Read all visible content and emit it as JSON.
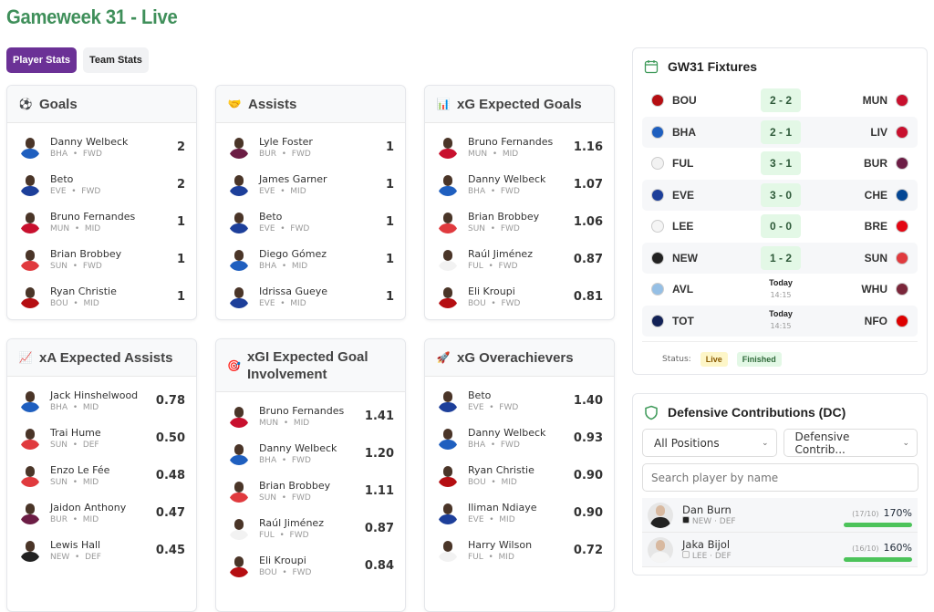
{
  "page": {
    "title": "Gameweek 31 - Live"
  },
  "tabs": [
    {
      "label": "Player Stats",
      "active": true
    },
    {
      "label": "Team Stats",
      "active": false
    }
  ],
  "cards": [
    {
      "title": "Goals",
      "icon": "soccer-ball-icon",
      "glyph": "⚽",
      "players": [
        {
          "name": "Danny Welbeck",
          "team": "BHA",
          "pos": "FWD",
          "value": "2"
        },
        {
          "name": "Beto",
          "team": "EVE",
          "pos": "FWD",
          "value": "2"
        },
        {
          "name": "Bruno Fernandes",
          "team": "MUN",
          "pos": "MID",
          "value": "1"
        },
        {
          "name": "Brian Brobbey",
          "team": "SUN",
          "pos": "FWD",
          "value": "1"
        },
        {
          "name": "Ryan Christie",
          "team": "BOU",
          "pos": "MID",
          "value": "1"
        }
      ]
    },
    {
      "title": "Assists",
      "icon": "handshake-icon",
      "glyph": "🤝",
      "players": [
        {
          "name": "Lyle Foster",
          "team": "BUR",
          "pos": "FWD",
          "value": "1"
        },
        {
          "name": "James Garner",
          "team": "EVE",
          "pos": "MID",
          "value": "1"
        },
        {
          "name": "Beto",
          "team": "EVE",
          "pos": "FWD",
          "value": "1"
        },
        {
          "name": "Diego Gómez",
          "team": "BHA",
          "pos": "MID",
          "value": "1"
        },
        {
          "name": "Idrissa Gueye",
          "team": "EVE",
          "pos": "MID",
          "value": "1"
        }
      ]
    },
    {
      "title": "xG Expected Goals",
      "icon": "bar-chart-icon",
      "glyph": "📊",
      "players": [
        {
          "name": "Bruno Fernandes",
          "team": "MUN",
          "pos": "MID",
          "value": "1.16"
        },
        {
          "name": "Danny Welbeck",
          "team": "BHA",
          "pos": "FWD",
          "value": "1.07"
        },
        {
          "name": "Brian Brobbey",
          "team": "SUN",
          "pos": "FWD",
          "value": "1.06"
        },
        {
          "name": "Raúl Jiménez",
          "team": "FUL",
          "pos": "FWD",
          "value": "0.87"
        },
        {
          "name": "Eli Kroupi",
          "team": "BOU",
          "pos": "FWD",
          "value": "0.81"
        }
      ]
    },
    {
      "title": "xA Expected Assists",
      "icon": "trend-chart-icon",
      "glyph": "📈",
      "players": [
        {
          "name": "Jack Hinshelwood",
          "team": "BHA",
          "pos": "MID",
          "value": "0.78"
        },
        {
          "name": "Trai Hume",
          "team": "SUN",
          "pos": "DEF",
          "value": "0.50"
        },
        {
          "name": "Enzo Le Fée",
          "team": "SUN",
          "pos": "MID",
          "value": "0.48"
        },
        {
          "name": "Jaidon Anthony",
          "team": "BUR",
          "pos": "MID",
          "value": "0.47"
        },
        {
          "name": "Lewis Hall",
          "team": "NEW",
          "pos": "DEF",
          "value": "0.45"
        }
      ]
    },
    {
      "title": "xGI Expected Goal Involvement",
      "icon": "target-icon",
      "glyph": "🎯",
      "players": [
        {
          "name": "Bruno Fernandes",
          "team": "MUN",
          "pos": "MID",
          "value": "1.41"
        },
        {
          "name": "Danny Welbeck",
          "team": "BHA",
          "pos": "FWD",
          "value": "1.20"
        },
        {
          "name": "Brian Brobbey",
          "team": "SUN",
          "pos": "FWD",
          "value": "1.11"
        },
        {
          "name": "Raúl Jiménez",
          "team": "FUL",
          "pos": "FWD",
          "value": "0.87"
        },
        {
          "name": "Eli Kroupi",
          "team": "BOU",
          "pos": "FWD",
          "value": "0.84"
        }
      ]
    },
    {
      "title": "xG Overachievers",
      "icon": "rocket-icon",
      "glyph": "🚀",
      "players": [
        {
          "name": "Beto",
          "team": "EVE",
          "pos": "FWD",
          "value": "1.40"
        },
        {
          "name": "Danny Welbeck",
          "team": "BHA",
          "pos": "FWD",
          "value": "0.93"
        },
        {
          "name": "Ryan Christie",
          "team": "BOU",
          "pos": "MID",
          "value": "0.90"
        },
        {
          "name": "Iliman Ndiaye",
          "team": "EVE",
          "pos": "MID",
          "value": "0.90"
        },
        {
          "name": "Harry Wilson",
          "team": "FUL",
          "pos": "MID",
          "value": "0.72"
        }
      ]
    }
  ],
  "team_colors": {
    "BHA": "#1f5fbf",
    "EVE": "#1d3f9a",
    "MUN": "#c8102e",
    "SUN": "#e03a3e",
    "BOU": "#b50e12",
    "BUR": "#6c1d45",
    "FUL": "#f2f2f2",
    "NEW": "#222222",
    "LEE": "#f5f5f5",
    "LIV": "#c8102e",
    "CHE": "#034694",
    "BRE": "#e30613",
    "AVL": "#95bfe5",
    "WHU": "#7a263a",
    "TOT": "#132257",
    "NFO": "#dd0000"
  },
  "fixtures": {
    "title": "GW31 Fixtures",
    "matches": [
      {
        "home": "BOU",
        "away": "MUN",
        "score": "2 - 2"
      },
      {
        "home": "BHA",
        "away": "LIV",
        "score": "2 - 1"
      },
      {
        "home": "FUL",
        "away": "BUR",
        "score": "3 - 1"
      },
      {
        "home": "EVE",
        "away": "CHE",
        "score": "3 - 0"
      },
      {
        "home": "LEE",
        "away": "BRE",
        "score": "0 - 0"
      },
      {
        "home": "NEW",
        "away": "SUN",
        "score": "1 - 2"
      },
      {
        "home": "AVL",
        "away": "WHU",
        "day": "Today",
        "time": "14:15"
      },
      {
        "home": "TOT",
        "away": "NFO",
        "day": "Today",
        "time": "14:15"
      }
    ],
    "status_label": "Status:",
    "live": "Live",
    "finished": "Finished",
    "live_color": "#fdf6c8",
    "finished_color": "#e3f8e6"
  },
  "defensive": {
    "title": "Defensive Contributions (DC)",
    "position_filter": "All Positions",
    "stat_filter": "Defensive Contrib...",
    "search_placeholder": "Search player by name",
    "players": [
      {
        "name": "Dan Burn",
        "team": "NEW",
        "pos": "DEF",
        "ratio": "(17/10)",
        "pct": "170%"
      },
      {
        "name": "Jaka Bijol",
        "team": "LEE",
        "pos": "DEF",
        "ratio": "(16/10)",
        "pct": "160%"
      }
    ]
  }
}
